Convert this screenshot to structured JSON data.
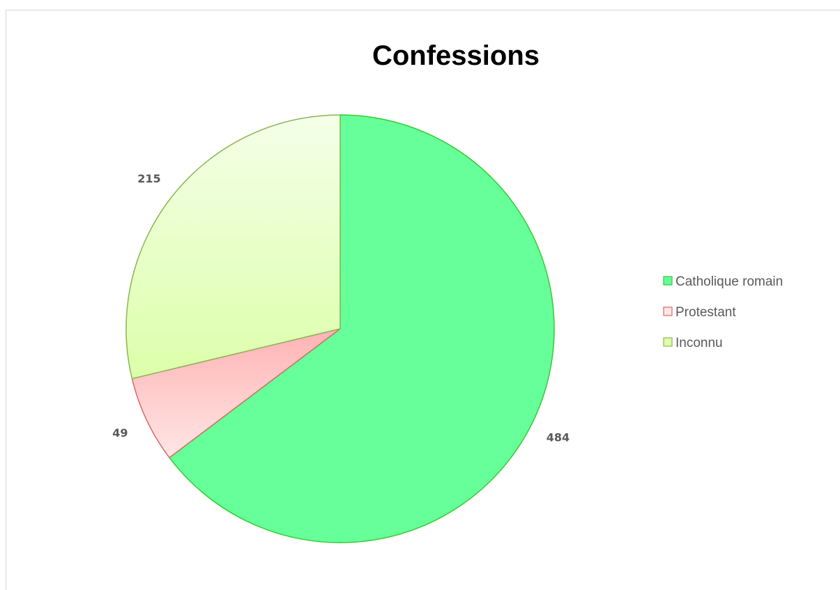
{
  "chart_data": {
    "type": "pie",
    "title": "Confessions",
    "slices": [
      {
        "label": "Catholique romain",
        "value": 484,
        "fill_top": "#66ff99",
        "fill_bottom": "#66ff99",
        "stroke": "#33cc33"
      },
      {
        "label": "Protestant",
        "value": 49,
        "fill_top": "#ffb3b3",
        "fill_bottom": "#ffe6e6",
        "stroke": "#e06666"
      },
      {
        "label": "Inconnu",
        "value": 215,
        "fill_top": "#f4ffe8",
        "fill_bottom": "#ddffaa",
        "stroke": "#8cb356"
      }
    ],
    "start_angle_deg": 0,
    "direction": "clockwise",
    "legend_position": "right",
    "data_labels": "outside"
  }
}
